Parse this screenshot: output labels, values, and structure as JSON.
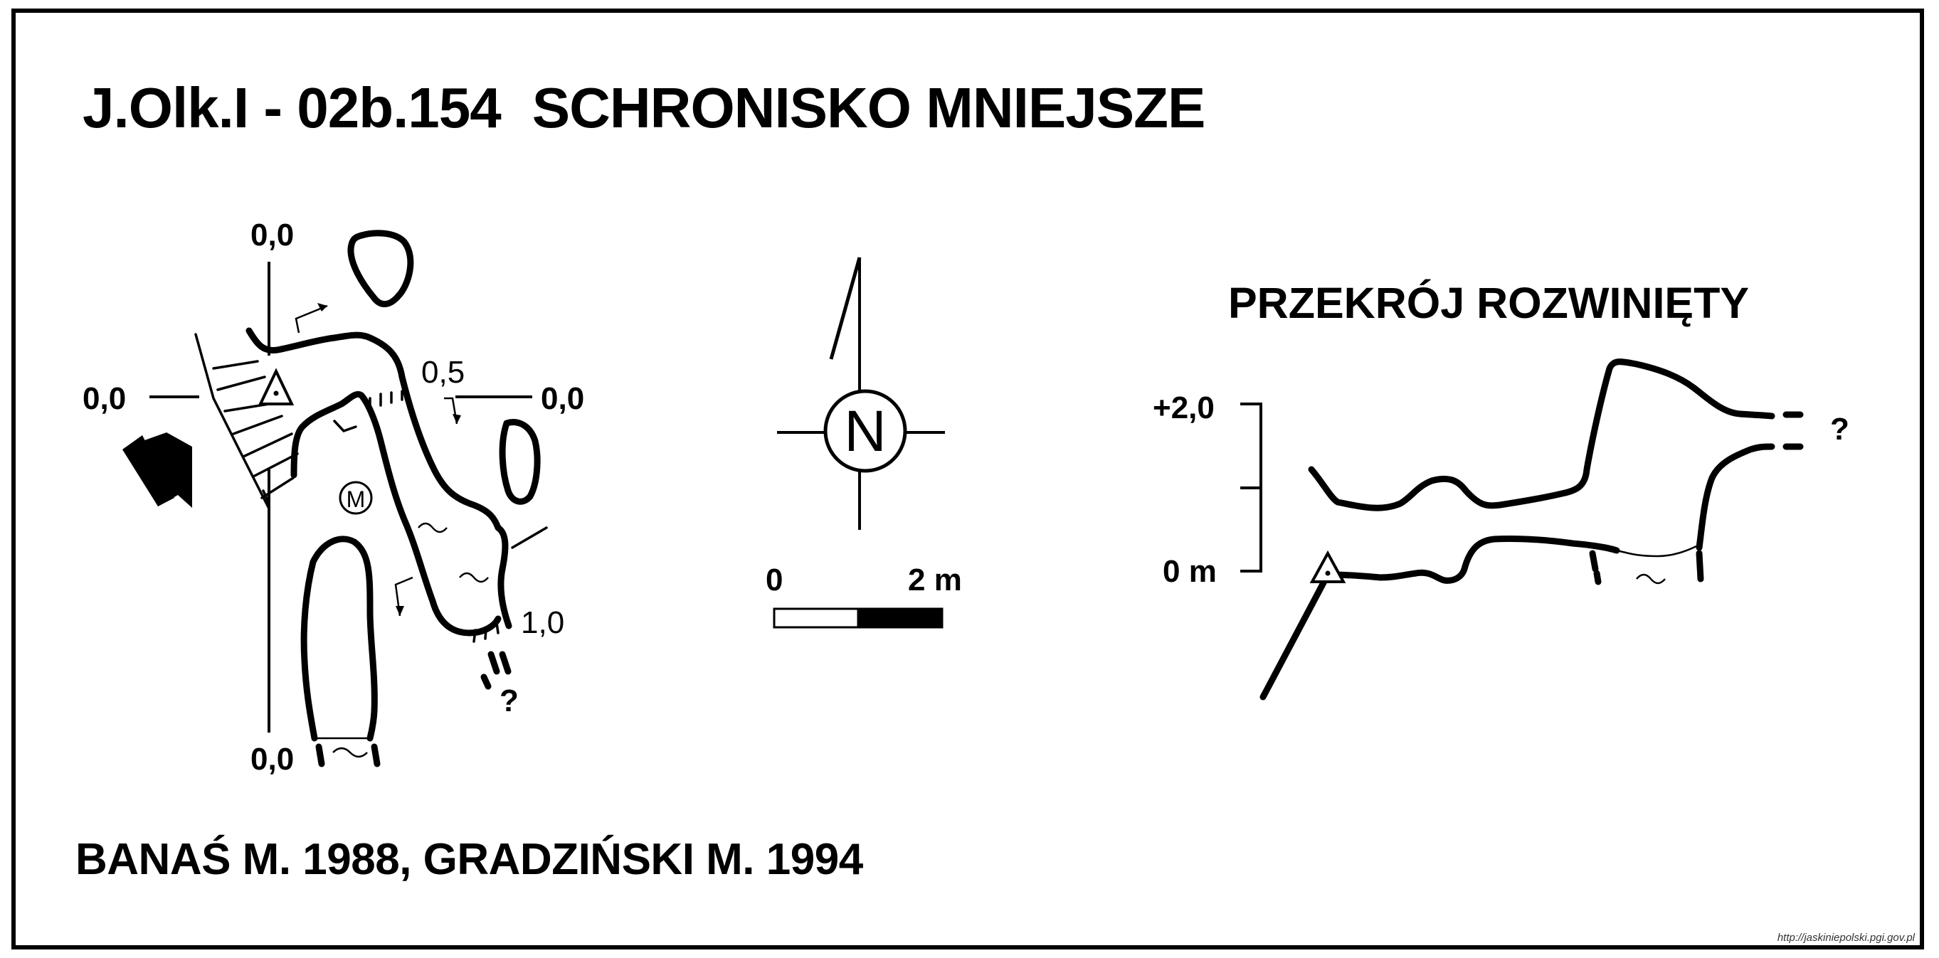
{
  "header": {
    "cave_id": "J.Olk.I - 02b.154",
    "cave_name": "SCHRONISKO MNIEJSZE"
  },
  "plan": {
    "depth_labels": {
      "top": "0,0",
      "left": "0,0",
      "right": "0,0",
      "bottom": "0,0",
      "mid": "0,5",
      "deep": "1,0"
    },
    "question_mark": "?",
    "passage_marker": "M"
  },
  "compass": {
    "letter": "N"
  },
  "scale_bar": {
    "start": "0",
    "end": "2 m"
  },
  "section": {
    "title": "PRZEKRÓJ ROZWINIĘTY",
    "upper_label": "+2,0",
    "lower_label": "0 m",
    "question_mark": "?"
  },
  "footer": {
    "credits": "BANAŚ M. 1988, GRADZIŃSKI M. 1994",
    "source_url": "http://jaskiniepolski.pgi.gov.pl"
  }
}
